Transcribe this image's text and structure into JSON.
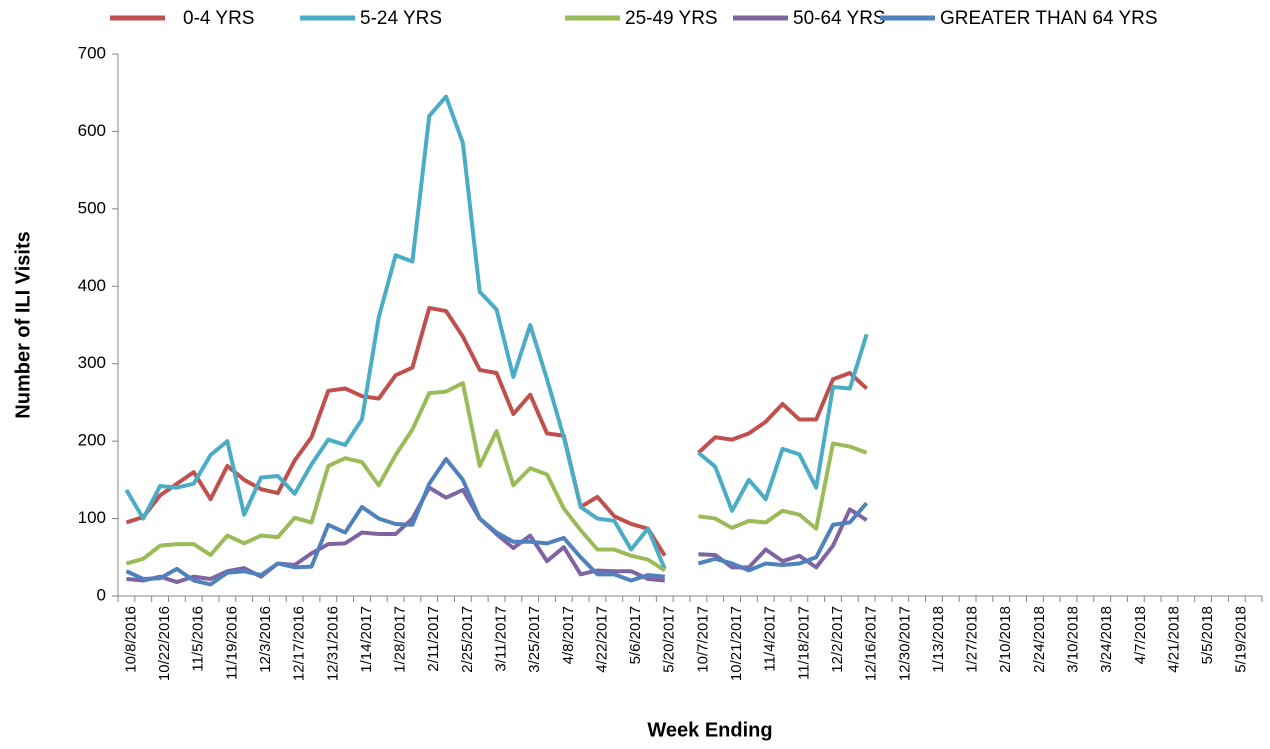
{
  "chart_data": {
    "type": "line",
    "xlabel": "Week Ending",
    "ylabel": "Number of ILI Visits",
    "categories": [
      "10/8/2016",
      null,
      "10/22/2016",
      null,
      "11/5/2016",
      null,
      "11/19/2016",
      null,
      "12/3/2016",
      null,
      "12/17/2016",
      null,
      "12/31/2016",
      null,
      "1/14/2017",
      null,
      "1/28/2017",
      null,
      "2/11/2017",
      null,
      "2/25/2017",
      null,
      "3/11/2017",
      null,
      "3/25/2017",
      null,
      "4/8/2017",
      null,
      "4/22/2017",
      null,
      "5/6/2017",
      null,
      "5/20/2017",
      null,
      "10/7/2017",
      null,
      "10/21/2017",
      null,
      "11/4/2017",
      null,
      "11/18/2017",
      null,
      "12/2/2017",
      null,
      "12/16/2017",
      null,
      "12/30/2017",
      null,
      "1/13/2018",
      null,
      "1/27/2018",
      null,
      "2/10/2018",
      null,
      "2/24/2018",
      null,
      "3/10/2018",
      null,
      "3/24/2018",
      null,
      "4/7/2018",
      null,
      "4/21/2018",
      null,
      "5/5/2018",
      null,
      "5/19/2018",
      null
    ],
    "series": [
      {
        "name": "0-4 YRS",
        "color": "#c0504d",
        "values": [
          95,
          102,
          130,
          145,
          160,
          125,
          168,
          150,
          138,
          133,
          175,
          205,
          265,
          268,
          258,
          255,
          285,
          295,
          372,
          368,
          335,
          292,
          288,
          235,
          260,
          210,
          207,
          115,
          128,
          103,
          93,
          87,
          52,
          null,
          185,
          205,
          202,
          210,
          225,
          248,
          228,
          228,
          280,
          288,
          268,
          null,
          null,
          null,
          null,
          null,
          null,
          null,
          null,
          null,
          null,
          null,
          null,
          null,
          null,
          null,
          null,
          null,
          null,
          null,
          null,
          null,
          null,
          null
        ]
      },
      {
        "name": "5-24 YRS",
        "color": "#4bacc6",
        "values": [
          137,
          100,
          142,
          140,
          145,
          182,
          200,
          105,
          153,
          155,
          132,
          170,
          202,
          195,
          228,
          360,
          440,
          432,
          620,
          645,
          585,
          393,
          370,
          283,
          350,
          280,
          205,
          115,
          100,
          97,
          60,
          87,
          35,
          null,
          185,
          167,
          110,
          150,
          125,
          190,
          183,
          140,
          270,
          268,
          338,
          null,
          null,
          null,
          null,
          null,
          null,
          null,
          null,
          null,
          null,
          null,
          null,
          null,
          null,
          null,
          null,
          null,
          null,
          null,
          null,
          null,
          null,
          null
        ]
      },
      {
        "name": "25-49 YRS",
        "color": "#9bbb59",
        "values": [
          42,
          48,
          65,
          67,
          67,
          53,
          78,
          68,
          78,
          76,
          101,
          95,
          168,
          178,
          173,
          143,
          182,
          215,
          262,
          264,
          275,
          168,
          213,
          143,
          165,
          157,
          113,
          85,
          60,
          60,
          52,
          47,
          33,
          null,
          103,
          100,
          88,
          97,
          95,
          110,
          105,
          87,
          197,
          193,
          185,
          null,
          null,
          null,
          null,
          null,
          null,
          null,
          null,
          null,
          null,
          null,
          null,
          null,
          null,
          null,
          null,
          null,
          null,
          null,
          null,
          null,
          null,
          null
        ]
      },
      {
        "name": "50-64 YRS",
        "color": "#8064a2",
        "values": [
          22,
          20,
          25,
          18,
          25,
          22,
          32,
          36,
          25,
          42,
          40,
          55,
          67,
          68,
          82,
          80,
          80,
          100,
          140,
          127,
          137,
          100,
          80,
          62,
          78,
          45,
          63,
          28,
          33,
          32,
          32,
          22,
          20,
          null,
          54,
          53,
          37,
          37,
          60,
          45,
          52,
          37,
          65,
          112,
          98,
          null,
          null,
          null,
          null,
          null,
          null,
          null,
          null,
          null,
          null,
          null,
          null,
          null,
          null,
          null,
          null,
          null,
          null,
          null,
          null,
          null,
          null,
          null
        ]
      },
      {
        "name": "GREATER THAN 64 YRS",
        "color": "#4f81bd",
        "values": [
          32,
          22,
          23,
          35,
          20,
          15,
          30,
          32,
          27,
          42,
          37,
          38,
          92,
          82,
          115,
          100,
          93,
          92,
          145,
          177,
          150,
          100,
          82,
          70,
          70,
          68,
          75,
          50,
          28,
          28,
          20,
          27,
          25,
          null,
          42,
          48,
          42,
          33,
          42,
          40,
          42,
          50,
          92,
          95,
          120,
          null,
          null,
          null,
          null,
          null,
          null,
          null,
          null,
          null,
          null,
          null,
          null,
          null,
          null,
          null,
          null,
          null,
          null,
          null,
          null,
          null,
          null,
          null
        ]
      }
    ],
    "ylim": [
      0,
      700
    ],
    "yticks": [
      0,
      100,
      200,
      300,
      400,
      500,
      600,
      700
    ],
    "legend": "top"
  }
}
